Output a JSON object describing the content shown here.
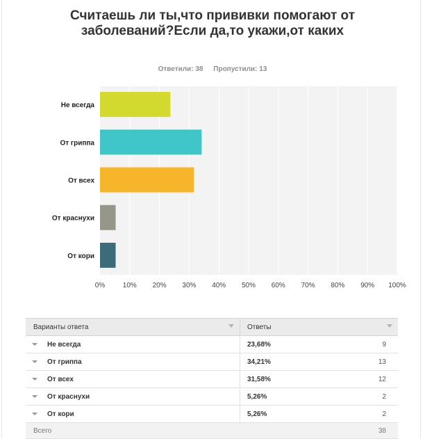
{
  "title": "Считаешь ли ты,что прививки помогают от заболеваний?Если да,то укажи,от каких",
  "stats": {
    "answered": "Ответили: 38",
    "skipped": "Пропустили: 13"
  },
  "chart_data": {
    "type": "bar",
    "orientation": "horizontal",
    "title": "Считаешь ли ты,что прививки помогают от заболеваний?Если да,то укажи,от каких",
    "categories": [
      "Не всегда",
      "От гриппа",
      "От всех",
      "От краснухи",
      "От кори"
    ],
    "values": [
      23.68,
      34.21,
      31.58,
      5.26,
      5.26
    ],
    "colors": [
      "#d4d92f",
      "#3ec6c8",
      "#f7b52c",
      "#96968a",
      "#3c6b7a"
    ],
    "xlim": [
      0,
      100
    ],
    "xticks": [
      "0%",
      "10%",
      "20%",
      "30%",
      "40%",
      "50%",
      "60%",
      "70%",
      "80%",
      "90%",
      "100%"
    ],
    "grid": true
  },
  "table": {
    "headers": {
      "options": "Варианты ответа",
      "answers": "Ответы"
    },
    "rows": [
      {
        "label": "Не всегда",
        "percent": "23,68%",
        "count": "9"
      },
      {
        "label": "От гриппа",
        "percent": "34,21%",
        "count": "13"
      },
      {
        "label": "От всех",
        "percent": "31,58%",
        "count": "12"
      },
      {
        "label": "От краснухи",
        "percent": "5,26%",
        "count": "2"
      },
      {
        "label": "От кори",
        "percent": "5,26%",
        "count": "2"
      }
    ],
    "total": {
      "label": "Всего",
      "count": "38"
    }
  }
}
